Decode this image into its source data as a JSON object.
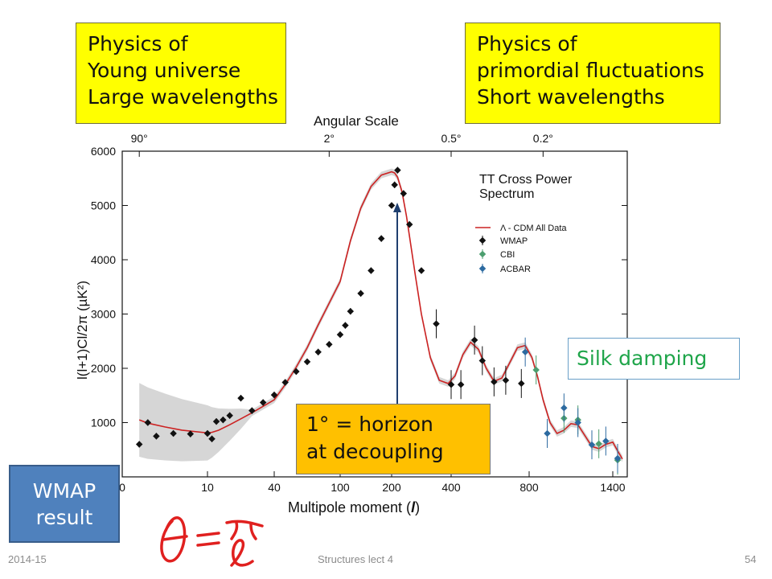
{
  "callouts": {
    "young_universe": [
      "Physics of",
      "Young universe",
      "Large wavelengths"
    ],
    "fluctuations": [
      "Physics of",
      "primordial fluctuations",
      "Short wavelengths"
    ],
    "silk": "Silk damping",
    "horizon": [
      "1° = horizon",
      "at decoupling"
    ],
    "badge": [
      "WMAP",
      "result"
    ]
  },
  "footer": {
    "date": "2014-15",
    "course": "Structures lect 4",
    "page": "54"
  },
  "chart_data": {
    "type": "scatter",
    "title": "TT Cross Power Spectrum",
    "top_axis_title": "Angular Scale",
    "top_axis_ticks": [
      {
        "label": "90°",
        "l": 2
      },
      {
        "label": "2°",
        "l": 90
      },
      {
        "label": "0.5°",
        "l": 400
      },
      {
        "label": "0.2°",
        "l": 900
      }
    ],
    "xlabel_prefix": "Multipole moment (",
    "xlabel_l": "l",
    "xlabel_suffix": ")",
    "ylabel": "l(l+1)Cl/2π (µK²)",
    "ylim": [
      0,
      6000
    ],
    "yticks": [
      1000,
      2000,
      3000,
      4000,
      5000,
      6000
    ],
    "x_scale": "log-like (piecewise)",
    "x_ticks": [
      {
        "label": "0",
        "l": 0
      },
      {
        "label": "10",
        "l": 10
      },
      {
        "label": "40",
        "l": 40
      },
      {
        "label": "100",
        "l": 100
      },
      {
        "label": "200",
        "l": 200
      },
      {
        "label": "400",
        "l": 400
      },
      {
        "label": "800",
        "l": 800
      },
      {
        "label": "1400",
        "l": 1400
      }
    ],
    "legend_location": "upper right",
    "series": [
      {
        "name": "Λ - CDM All Data",
        "kind": "line",
        "color": "#cc2222",
        "x": [
          2,
          3,
          5,
          7,
          10,
          12,
          15,
          20,
          25,
          30,
          40,
          50,
          60,
          70,
          80,
          100,
          120,
          140,
          160,
          180,
          200,
          210,
          220,
          235,
          250,
          280,
          300,
          330,
          360,
          390,
          420,
          460,
          500,
          540,
          580,
          620,
          660,
          700,
          740,
          780,
          820,
          860,
          900,
          950,
          1000,
          1050,
          1100,
          1150,
          1200,
          1250,
          1300,
          1350,
          1400,
          1450,
          1500
        ],
        "y": [
          1050,
          990,
          920,
          860,
          810,
          820,
          860,
          960,
          1070,
          1180,
          1420,
          1700,
          2020,
          2380,
          2800,
          3600,
          4350,
          4950,
          5350,
          5560,
          5620,
          5600,
          5520,
          5250,
          4800,
          3700,
          3000,
          2200,
          1780,
          1720,
          1860,
          2250,
          2480,
          2350,
          2000,
          1760,
          1820,
          2100,
          2380,
          2420,
          2200,
          1850,
          1420,
          1000,
          800,
          860,
          980,
          960,
          760,
          560,
          520,
          600,
          640,
          480,
          330
        ]
      },
      {
        "name": "WMAP",
        "kind": "points",
        "color": "#111111",
        "x": [
          2,
          3,
          4,
          6,
          8,
          10,
          12,
          14,
          17,
          20,
          25,
          30,
          35,
          40,
          50,
          60,
          70,
          80,
          90,
          100,
          110,
          120,
          140,
          160,
          180,
          200,
          210,
          220,
          240,
          260,
          300,
          350,
          400,
          450,
          520,
          560,
          620,
          680,
          760
        ],
        "y": [
          600,
          1000,
          750,
          800,
          790,
          800,
          700,
          1020,
          1050,
          1130,
          1450,
          1220,
          1370,
          1510,
          1740,
          1940,
          2120,
          2300,
          2440,
          2620,
          2790,
          3050,
          3380,
          3800,
          4390,
          5000,
          5380,
          5650,
          5220,
          4650,
          3800,
          2820,
          1700,
          1700,
          2520,
          2140,
          1750,
          1780,
          1720
        ]
      },
      {
        "name": "CBI",
        "kind": "points",
        "color": "#4c9e6f",
        "x": [
          850,
          1050,
          1150,
          1300,
          1450
        ],
        "y": [
          1970,
          1080,
          1050,
          610,
          310
        ]
      },
      {
        "name": "ACBAR",
        "kind": "points",
        "color": "#2c6aa0",
        "x": [
          780,
          930,
          1050,
          1150,
          1250,
          1350,
          1450
        ],
        "y": [
          2300,
          800,
          1270,
          1000,
          590,
          660,
          340
        ]
      }
    ]
  }
}
